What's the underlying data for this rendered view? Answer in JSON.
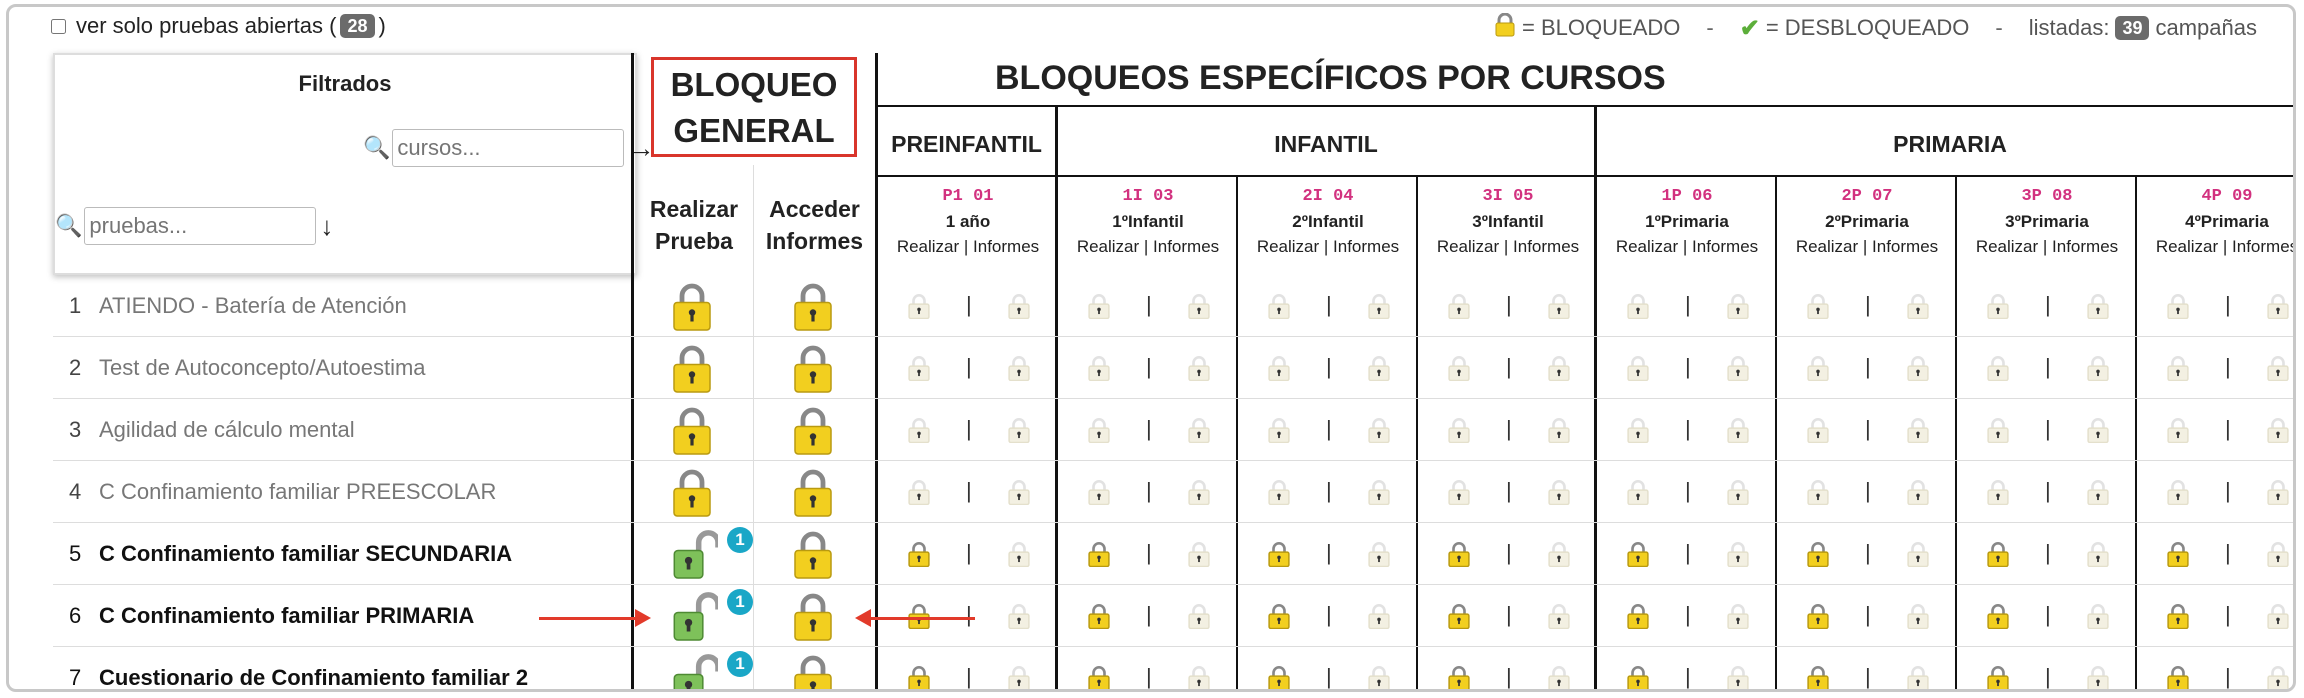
{
  "top": {
    "checkbox_label": "ver solo pruebas abiertas (",
    "checkbox_close": ")",
    "open_count": "28",
    "legend_locked": "= BLOQUEADO",
    "legend_unlocked": "= DESBLOQUEADO",
    "dash": "-",
    "listed_label": "listadas:",
    "listed_count": "39",
    "campaigns_label": "campañas"
  },
  "filters": {
    "title": "Filtrados",
    "courses_placeholder": "cursos...",
    "tests_placeholder": "pruebas..."
  },
  "general_lock": {
    "line1": "BLOQUEO",
    "line2": "GENERAL",
    "col1": "Realizar Prueba",
    "col1a": "Realizar",
    "col1b": "Prueba",
    "col2a": "Acceder",
    "col2b": "Informes"
  },
  "specific": {
    "title": "BLOQUEOS ESPECÍFICOS POR CURSOS",
    "groups": [
      "PREINFANTIL",
      "INFANTIL",
      "PRIMARIA"
    ],
    "sub_label": "Realizar | Informes",
    "courses": [
      {
        "code": "P1 01",
        "name": "1 año"
      },
      {
        "code": "1I 03",
        "name": "1ºInfantil"
      },
      {
        "code": "2I 04",
        "name": "2ºInfantil"
      },
      {
        "code": "3I 05",
        "name": "3ºInfantil"
      },
      {
        "code": "1P 06",
        "name": "1ºPrimaria"
      },
      {
        "code": "2P 07",
        "name": "2ºPrimaria"
      },
      {
        "code": "3P 08",
        "name": "3ºPrimaria"
      },
      {
        "code": "4P 09",
        "name": "4ºPrimaria"
      }
    ]
  },
  "rows": [
    {
      "num": "1",
      "title": "ATIENDO - Batería de Atención",
      "open": false
    },
    {
      "num": "2",
      "title": "Test de Autoconcepto/Autoestima",
      "open": false
    },
    {
      "num": "3",
      "title": "Agilidad de cálculo mental",
      "open": false
    },
    {
      "num": "4",
      "title": "C Confinamiento familiar PREESCOLAR",
      "open": false
    },
    {
      "num": "5",
      "title": "C Confinamiento familiar SECUNDARIA",
      "open": true
    },
    {
      "num": "6",
      "title": "C Confinamiento familiar PRIMARIA",
      "open": true
    },
    {
      "num": "7",
      "title": "Cuestionario de Confinamiento familiar 2",
      "open": true
    }
  ],
  "unlock_badge": "1",
  "icons": {
    "locked": "lock-icon",
    "unlocked": "unlocked-icon",
    "check": "check-icon",
    "search": "search-icon"
  },
  "colors": {
    "locked": "#f2cf1f",
    "unlocked": "#7ec15a",
    "badge": "#1aa7c7",
    "highlight": "#d9352b",
    "course_code": "#d2317f"
  }
}
